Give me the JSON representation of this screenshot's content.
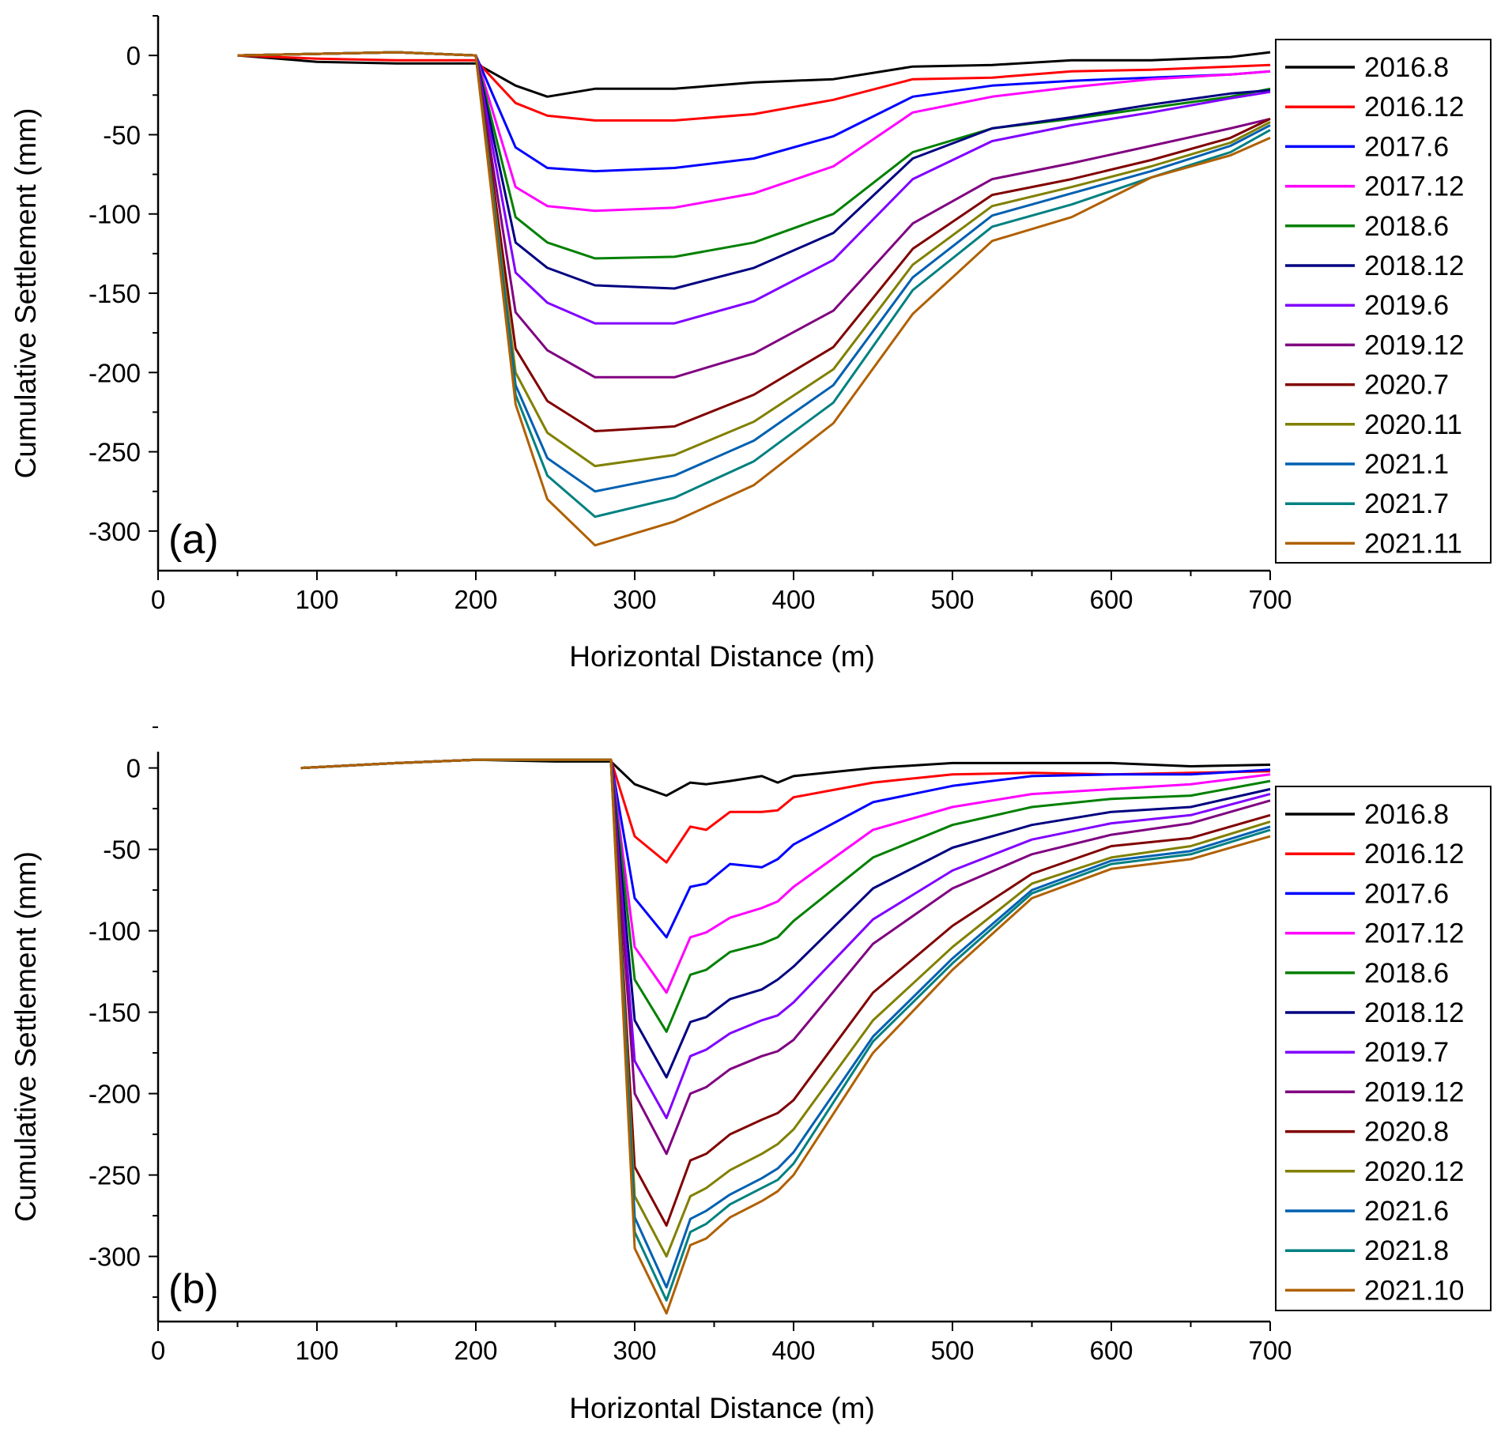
{
  "colors": [
    "#000000",
    "#ff0000",
    "#0000ff",
    "#ff00ff",
    "#008000",
    "#000080",
    "#8000ff",
    "#800080",
    "#800000",
    "#808000",
    "#0060b0",
    "#008080",
    "#b06000"
  ],
  "chart_data": [
    {
      "type": "line",
      "panel_label": "(a)",
      "xlabel": "Horizontal Distance (m)",
      "ylabel": "Cumulative Settlement (mm)",
      "xlim": [
        0,
        700
      ],
      "ylim": [
        -325,
        25
      ],
      "xticks": [
        0,
        100,
        200,
        300,
        400,
        500,
        600,
        700
      ],
      "yticks": [
        0,
        -50,
        -100,
        -150,
        -200,
        -250,
        -300
      ],
      "grid": false,
      "legend_position": "right",
      "series": [
        {
          "name": "2016.8",
          "x": [
            50,
            100,
            150,
            200,
            225,
            245,
            275,
            325,
            375,
            425,
            475,
            525,
            575,
            625,
            675,
            700
          ],
          "y": [
            0,
            -4,
            -5,
            -5,
            -19,
            -26,
            -21,
            -21,
            -17,
            -15,
            -7,
            -6,
            -3,
            -3,
            -1,
            2
          ]
        },
        {
          "name": "2016.12",
          "x": [
            50,
            100,
            150,
            200,
            225,
            245,
            275,
            325,
            375,
            425,
            475,
            525,
            575,
            625,
            675,
            700
          ],
          "y": [
            0,
            -2,
            -3,
            -3,
            -30,
            -38,
            -41,
            -41,
            -37,
            -28,
            -15,
            -14,
            -10,
            -9,
            -7,
            -6
          ]
        },
        {
          "name": "2017.6",
          "x": [
            50,
            100,
            150,
            200,
            225,
            245,
            275,
            325,
            375,
            425,
            475,
            525,
            575,
            625,
            675,
            700
          ],
          "y": [
            0,
            1,
            2,
            0,
            -58,
            -71,
            -73,
            -71,
            -65,
            -51,
            -26,
            -19,
            -16,
            -14,
            -12,
            -10
          ]
        },
        {
          "name": "2017.12",
          "x": [
            50,
            100,
            150,
            200,
            225,
            245,
            275,
            325,
            375,
            425,
            475,
            525,
            575,
            625,
            675,
            700
          ],
          "y": [
            0,
            1,
            2,
            0,
            -83,
            -95,
            -98,
            -96,
            -87,
            -70,
            -36,
            -26,
            -20,
            -15,
            -12,
            -10
          ]
        },
        {
          "name": "2018.6",
          "x": [
            50,
            100,
            150,
            200,
            225,
            245,
            275,
            325,
            375,
            425,
            475,
            525,
            575,
            625,
            675,
            700
          ],
          "y": [
            0,
            1,
            2,
            0,
            -102,
            -118,
            -128,
            -127,
            -118,
            -100,
            -61,
            -46,
            -40,
            -33,
            -26,
            -21
          ]
        },
        {
          "name": "2018.12",
          "x": [
            50,
            100,
            150,
            200,
            225,
            245,
            275,
            325,
            375,
            425,
            475,
            525,
            575,
            625,
            675,
            700
          ],
          "y": [
            0,
            1,
            2,
            0,
            -118,
            -134,
            -145,
            -147,
            -134,
            -112,
            -65,
            -46,
            -39,
            -31,
            -24,
            -22
          ]
        },
        {
          "name": "2019.6",
          "x": [
            50,
            100,
            150,
            200,
            225,
            245,
            275,
            325,
            375,
            425,
            475,
            525,
            575,
            625,
            675,
            700
          ],
          "y": [
            0,
            1,
            2,
            0,
            -137,
            -156,
            -169,
            -169,
            -155,
            -129,
            -78,
            -54,
            -44,
            -36,
            -27,
            -23
          ]
        },
        {
          "name": "2019.12",
          "x": [
            50,
            100,
            150,
            200,
            225,
            245,
            275,
            325,
            375,
            425,
            475,
            525,
            575,
            625,
            675,
            700
          ],
          "y": [
            0,
            1,
            2,
            0,
            -162,
            -186,
            -203,
            -203,
            -188,
            -161,
            -106,
            -78,
            -68,
            -57,
            -46,
            -40
          ]
        },
        {
          "name": "2020.7",
          "x": [
            50,
            100,
            150,
            200,
            225,
            245,
            275,
            325,
            375,
            425,
            475,
            525,
            575,
            625,
            675,
            700
          ],
          "y": [
            0,
            1,
            2,
            0,
            -185,
            -218,
            -237,
            -234,
            -214,
            -184,
            -122,
            -88,
            -78,
            -66,
            -52,
            -40
          ]
        },
        {
          "name": "2020.11",
          "x": [
            50,
            100,
            150,
            200,
            225,
            245,
            275,
            325,
            375,
            425,
            475,
            525,
            575,
            625,
            675,
            700
          ],
          "y": [
            0,
            1,
            2,
            0,
            -200,
            -238,
            -259,
            -252,
            -231,
            -198,
            -132,
            -95,
            -83,
            -70,
            -55,
            -42
          ]
        },
        {
          "name": "2021.1",
          "x": [
            50,
            100,
            150,
            200,
            225,
            245,
            275,
            325,
            375,
            425,
            475,
            525,
            575,
            625,
            675,
            700
          ],
          "y": [
            0,
            1,
            2,
            0,
            -208,
            -254,
            -275,
            -265,
            -243,
            -208,
            -140,
            -101,
            -87,
            -73,
            -57,
            -44
          ]
        },
        {
          "name": "2021.7",
          "x": [
            50,
            100,
            150,
            200,
            225,
            245,
            275,
            325,
            375,
            425,
            475,
            525,
            575,
            625,
            675,
            700
          ],
          "y": [
            0,
            1,
            2,
            0,
            -214,
            -265,
            -291,
            -279,
            -256,
            -219,
            -148,
            -108,
            -94,
            -77,
            -61,
            -47
          ]
        },
        {
          "name": "2021.11",
          "x": [
            50,
            100,
            150,
            200,
            225,
            245,
            275,
            325,
            375,
            425,
            475,
            525,
            575,
            625,
            675,
            700
          ],
          "y": [
            0,
            1,
            2,
            0,
            -220,
            -280,
            -309,
            -294,
            -271,
            -232,
            -163,
            -117,
            -102,
            -77,
            -63,
            -52
          ]
        }
      ]
    },
    {
      "type": "line",
      "panel_label": "(b)",
      "xlabel": "Horizontal Distance (m)",
      "ylabel": "Cumulative Settlement (mm)",
      "xlim": [
        0,
        700
      ],
      "ylim": [
        -340,
        10
      ],
      "xticks": [
        0,
        100,
        200,
        300,
        400,
        500,
        600,
        700
      ],
      "yticks": [
        0,
        -50,
        -100,
        -150,
        -200,
        -250,
        -300
      ],
      "grid": false,
      "legend_position": "right",
      "series": [
        {
          "name": "2016.8",
          "x": [
            90,
            150,
            200,
            250,
            285,
            300,
            320,
            335,
            345,
            360,
            380,
            390,
            400,
            450,
            500,
            550,
            600,
            650,
            700
          ],
          "y": [
            0,
            3,
            5,
            4,
            4,
            -10,
            -17,
            -9,
            -10,
            -8,
            -5,
            -9,
            -5,
            0,
            3,
            3,
            3,
            1,
            2
          ]
        },
        {
          "name": "2016.12",
          "x": [
            90,
            150,
            200,
            250,
            285,
            300,
            320,
            335,
            345,
            360,
            380,
            390,
            400,
            450,
            500,
            550,
            600,
            650,
            700
          ],
          "y": [
            0,
            3,
            5,
            5,
            5,
            -42,
            -58,
            -36,
            -38,
            -27,
            -27,
            -26,
            -18,
            -9,
            -4,
            -3,
            -4,
            -3,
            -2
          ]
        },
        {
          "name": "2017.6",
          "x": [
            90,
            150,
            200,
            250,
            285,
            300,
            320,
            335,
            345,
            360,
            380,
            390,
            400,
            450,
            500,
            550,
            600,
            650,
            700
          ],
          "y": [
            0,
            3,
            5,
            5,
            5,
            -80,
            -104,
            -73,
            -71,
            -59,
            -61,
            -56,
            -47,
            -21,
            -11,
            -5,
            -4,
            -4,
            -1
          ]
        },
        {
          "name": "2017.12",
          "x": [
            90,
            150,
            200,
            250,
            285,
            300,
            320,
            335,
            345,
            360,
            380,
            390,
            400,
            450,
            500,
            550,
            600,
            650,
            700
          ],
          "y": [
            0,
            3,
            5,
            5,
            5,
            -110,
            -138,
            -104,
            -101,
            -92,
            -86,
            -82,
            -73,
            -38,
            -24,
            -16,
            -13,
            -10,
            -4
          ]
        },
        {
          "name": "2018.6",
          "x": [
            90,
            150,
            200,
            250,
            285,
            300,
            320,
            335,
            345,
            360,
            380,
            390,
            400,
            450,
            500,
            550,
            600,
            650,
            700
          ],
          "y": [
            0,
            3,
            5,
            5,
            5,
            -130,
            -162,
            -127,
            -124,
            -113,
            -108,
            -104,
            -94,
            -55,
            -35,
            -24,
            -19,
            -17,
            -8
          ]
        },
        {
          "name": "2018.12",
          "x": [
            90,
            150,
            200,
            250,
            285,
            300,
            320,
            335,
            345,
            360,
            380,
            390,
            400,
            450,
            500,
            550,
            600,
            650,
            700
          ],
          "y": [
            0,
            3,
            5,
            5,
            5,
            -155,
            -190,
            -156,
            -153,
            -142,
            -136,
            -130,
            -122,
            -74,
            -49,
            -35,
            -27,
            -24,
            -13
          ]
        },
        {
          "name": "2019.7",
          "x": [
            90,
            150,
            200,
            250,
            285,
            300,
            320,
            335,
            345,
            360,
            380,
            390,
            400,
            450,
            500,
            550,
            600,
            650,
            700
          ],
          "y": [
            0,
            3,
            5,
            5,
            5,
            -180,
            -215,
            -177,
            -173,
            -163,
            -155,
            -152,
            -144,
            -93,
            -63,
            -44,
            -34,
            -29,
            -16
          ]
        },
        {
          "name": "2019.12",
          "x": [
            90,
            150,
            200,
            250,
            285,
            300,
            320,
            335,
            345,
            360,
            380,
            390,
            400,
            450,
            500,
            550,
            600,
            650,
            700
          ],
          "y": [
            0,
            3,
            5,
            5,
            5,
            -200,
            -237,
            -200,
            -196,
            -185,
            -177,
            -174,
            -167,
            -108,
            -74,
            -53,
            -41,
            -34,
            -20
          ]
        },
        {
          "name": "2020.8",
          "x": [
            90,
            150,
            200,
            250,
            285,
            300,
            320,
            335,
            345,
            360,
            380,
            390,
            400,
            450,
            500,
            550,
            600,
            650,
            700
          ],
          "y": [
            0,
            3,
            5,
            5,
            5,
            -245,
            -281,
            -241,
            -237,
            -225,
            -216,
            -212,
            -204,
            -138,
            -97,
            -65,
            -48,
            -43,
            -29
          ]
        },
        {
          "name": "2020.12",
          "x": [
            90,
            150,
            200,
            250,
            285,
            300,
            320,
            335,
            345,
            360,
            380,
            390,
            400,
            450,
            500,
            550,
            600,
            650,
            700
          ],
          "y": [
            0,
            3,
            5,
            5,
            5,
            -263,
            -300,
            -263,
            -258,
            -247,
            -237,
            -231,
            -222,
            -155,
            -110,
            -71,
            -55,
            -48,
            -33
          ]
        },
        {
          "name": "2021.6",
          "x": [
            90,
            150,
            200,
            250,
            285,
            300,
            320,
            335,
            345,
            360,
            380,
            390,
            400,
            450,
            500,
            550,
            600,
            650,
            700
          ],
          "y": [
            0,
            3,
            5,
            5,
            5,
            -276,
            -319,
            -277,
            -272,
            -262,
            -252,
            -246,
            -236,
            -165,
            -117,
            -75,
            -57,
            -51,
            -36
          ]
        },
        {
          "name": "2021.8",
          "x": [
            90,
            150,
            200,
            250,
            285,
            300,
            320,
            335,
            345,
            360,
            380,
            390,
            400,
            450,
            500,
            550,
            600,
            650,
            700
          ],
          "y": [
            0,
            3,
            5,
            5,
            5,
            -285,
            -327,
            -285,
            -280,
            -268,
            -258,
            -253,
            -243,
            -168,
            -120,
            -77,
            -59,
            -53,
            -38
          ]
        },
        {
          "name": "2021.10",
          "x": [
            90,
            150,
            200,
            250,
            285,
            300,
            320,
            335,
            345,
            360,
            380,
            390,
            400,
            450,
            500,
            550,
            600,
            650,
            700
          ],
          "y": [
            0,
            3,
            5,
            5,
            5,
            -295,
            -335,
            -293,
            -289,
            -276,
            -266,
            -260,
            -250,
            -175,
            -124,
            -80,
            -62,
            -56,
            -42
          ]
        }
      ]
    }
  ]
}
